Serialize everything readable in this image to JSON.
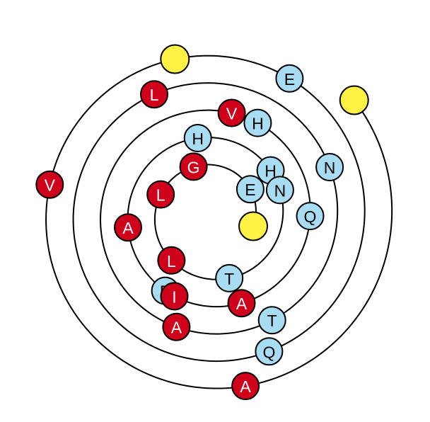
{
  "colors": {
    "red": "#d0021b",
    "blue": "#a8dcf2",
    "yellow": "#fff245",
    "line": "#000000",
    "text_on_red": "#ffffff",
    "text_on_blue": "#000000"
  },
  "endpoints": [
    {
      "name": "yellow-start-marker",
      "color": "yellow"
    },
    {
      "name": "yellow-outer-marker",
      "color": "yellow"
    },
    {
      "name": "yellow-bottom-marker",
      "color": "yellow"
    }
  ],
  "beads": [
    {
      "letter": "G",
      "color": "red"
    },
    {
      "letter": "E",
      "color": "blue"
    },
    {
      "letter": "T",
      "color": "blue"
    },
    {
      "letter": "L",
      "color": "red"
    },
    {
      "letter": "L",
      "color": "red"
    },
    {
      "letter": "H",
      "color": "blue"
    },
    {
      "letter": "H",
      "color": "blue"
    },
    {
      "letter": "N",
      "color": "blue"
    },
    {
      "letter": "E",
      "color": "blue"
    },
    {
      "letter": "A",
      "color": "red"
    },
    {
      "letter": "I",
      "color": "red"
    },
    {
      "letter": "A",
      "color": "red"
    },
    {
      "letter": "V",
      "color": "red"
    },
    {
      "letter": "H",
      "color": "blue"
    },
    {
      "letter": "Q",
      "color": "blue"
    },
    {
      "letter": "T",
      "color": "blue"
    },
    {
      "letter": "A",
      "color": "red"
    },
    {
      "letter": "L",
      "color": "red"
    },
    {
      "letter": "N",
      "color": "blue"
    },
    {
      "letter": "Q",
      "color": "blue"
    },
    {
      "letter": "E",
      "color": "blue"
    },
    {
      "letter": "A",
      "color": "red"
    },
    {
      "letter": "V",
      "color": "red"
    }
  ]
}
